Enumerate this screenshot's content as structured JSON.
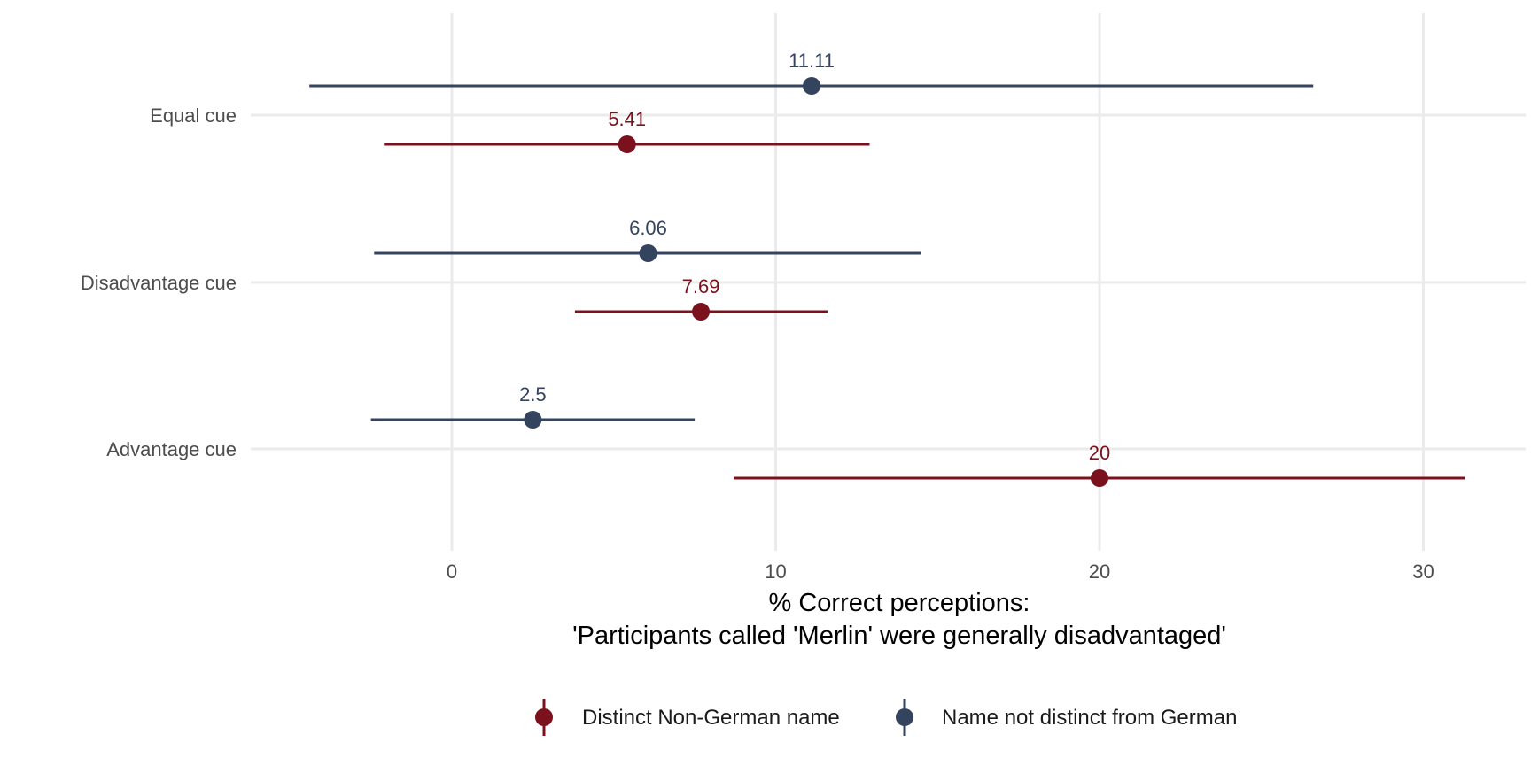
{
  "chart_data": {
    "type": "scatter",
    "subtype": "dot-and-whisker",
    "orientation": "horizontal",
    "categories": [
      "Equal cue",
      "Disadvantage cue",
      "Advantage cue"
    ],
    "xlabel": "% Correct perceptions:\n'Participants called 'Merlin' were generally disadvantaged'",
    "ylabel": "",
    "title": "",
    "xlim": [
      -6.2,
      33
    ],
    "xticks": [
      0,
      10,
      20,
      30
    ],
    "xtick_labels": [
      "0",
      "10",
      "20",
      "30"
    ],
    "grid": true,
    "legend_position": "bottom",
    "series": [
      {
        "name": "Name not distinct from German",
        "color": "#34435e",
        "points": [
          {
            "category": "Equal cue",
            "value": 11.11,
            "low": -4.4,
            "high": 26.6,
            "label": "11.11"
          },
          {
            "category": "Disadvantage cue",
            "value": 6.06,
            "low": -2.4,
            "high": 14.5,
            "label": "6.06"
          },
          {
            "category": "Advantage cue",
            "value": 2.5,
            "low": -2.5,
            "high": 7.5,
            "label": "2.5"
          }
        ]
      },
      {
        "name": "Distinct Non-German name",
        "color": "#7b111c",
        "points": [
          {
            "category": "Equal cue",
            "value": 5.41,
            "low": -2.1,
            "high": 12.9,
            "label": "5.41"
          },
          {
            "category": "Disadvantage cue",
            "value": 7.69,
            "low": 3.8,
            "high": 11.6,
            "label": "7.69"
          },
          {
            "category": "Advantage cue",
            "value": 20,
            "low": 8.7,
            "high": 31.3,
            "label": "20"
          }
        ]
      }
    ],
    "legend": [
      {
        "name": "Distinct Non-German name",
        "color": "#7b111c"
      },
      {
        "name": "Name not distinct from German",
        "color": "#34435e"
      }
    ]
  }
}
